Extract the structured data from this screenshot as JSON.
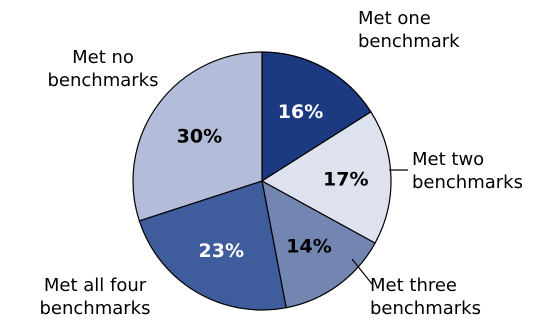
{
  "chart_data": {
    "type": "pie",
    "title": "",
    "start_angle_deg": 0,
    "direction": "clockwise",
    "slices": [
      {
        "label": [
          "Met one",
          "benchmark"
        ],
        "value": 16,
        "value_label": "16%",
        "color": "#1b3a82",
        "text_color": "#ffffff"
      },
      {
        "label": [
          "Met two",
          "benchmarks"
        ],
        "value": 17,
        "value_label": "17%",
        "color": "#dde2ee",
        "text_color": "#000000"
      },
      {
        "label": [
          "Met three",
          "benchmarks"
        ],
        "value": 14,
        "value_label": "14%",
        "color": "#7386b2",
        "text_color": "#000000"
      },
      {
        "label": [
          "Met all four",
          "benchmarks"
        ],
        "value": 23,
        "value_label": "23%",
        "color": "#3f5c9c",
        "text_color": "#ffffff"
      },
      {
        "label": [
          "Met no",
          "benchmarks"
        ],
        "value": 30,
        "value_label": "30%",
        "color": "#b3bcd8",
        "text_color": "#000000"
      }
    ]
  }
}
